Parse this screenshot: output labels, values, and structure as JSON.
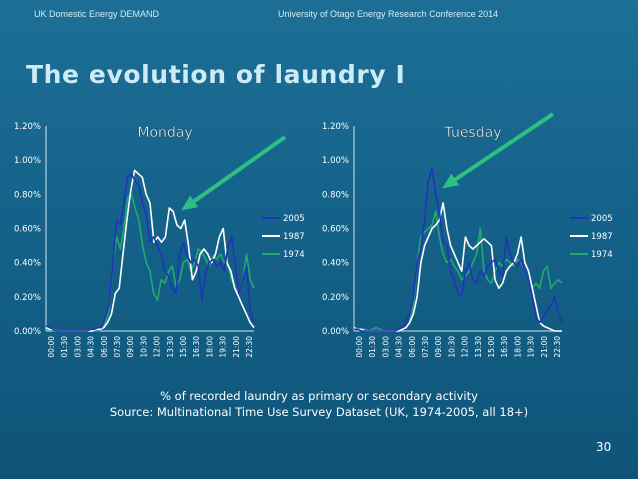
{
  "header": {
    "left": "UK Domestic Energy DEMAND",
    "right": "University of Otago Energy Research Conference 2014"
  },
  "title": "The evolution of laundry I",
  "caption": {
    "line1": "% of recorded laundry as primary or secondary activity",
    "line2": "Source: Multinational Time Use Survey Dataset (UK, 1974-2005, all 18+)"
  },
  "page_number": "30",
  "colors": {
    "2005": "#2233bb",
    "1987": "#ffffff",
    "1974": "#22aa6e",
    "arrow": "#2ebf83",
    "axis_text": "#ffffff"
  },
  "chart_data": [
    {
      "type": "line",
      "title": "Monday",
      "ylim": [
        0,
        1.2
      ],
      "y_ticks": [
        "0.00%",
        "0.20%",
        "0.40%",
        "0.60%",
        "0.80%",
        "1.00%",
        "1.20%"
      ],
      "x_tick_labels": [
        "00:00",
        "01:30",
        "03:00",
        "04:30",
        "06:00",
        "07:30",
        "09:00",
        "10:30",
        "12:00",
        "13:30",
        "15:00",
        "16:30",
        "18:00",
        "19:30",
        "21:00",
        "22:30"
      ],
      "grid": false,
      "legend_position": "right",
      "annotation": "arrow pointing to the 1987 late-morning peak",
      "series": [
        {
          "name": "2005",
          "values": [
            0.03,
            0.02,
            0.01,
            0,
            0,
            0,
            0,
            0,
            0,
            0,
            0,
            0,
            0.01,
            0.01,
            0.02,
            0.02,
            0.08,
            0.15,
            0.4,
            0.65,
            0.62,
            0.75,
            0.9,
            0.92,
            0.88,
            0.85,
            0.75,
            0.68,
            0.52,
            0.55,
            0.5,
            0.45,
            0.35,
            0.32,
            0.25,
            0.22,
            0.45,
            0.52,
            0.44,
            0.4,
            0.42,
            0.38,
            0.18,
            0.35,
            0.4,
            0.42,
            0.38,
            0.4,
            0.35,
            0.5,
            0.55,
            0.38,
            0.22,
            0.3,
            0.38,
            0.12,
            0.05
          ]
        },
        {
          "name": "1987",
          "values": [
            0.02,
            0.01,
            0.01,
            0,
            0,
            0,
            0,
            0,
            0,
            0,
            0,
            0,
            0,
            0.01,
            0.01,
            0.02,
            0.05,
            0.1,
            0.22,
            0.25,
            0.45,
            0.65,
            0.82,
            0.94,
            0.92,
            0.9,
            0.8,
            0.75,
            0.52,
            0.55,
            0.52,
            0.55,
            0.72,
            0.7,
            0.62,
            0.6,
            0.65,
            0.5,
            0.3,
            0.35,
            0.45,
            0.48,
            0.45,
            0.4,
            0.45,
            0.55,
            0.6,
            0.4,
            0.35,
            0.25,
            0.2,
            0.15,
            0.1,
            0.05,
            0.02
          ]
        },
        {
          "name": "1974",
          "values": [
            0.01,
            0.01,
            0,
            0,
            0,
            0,
            0,
            0,
            0,
            0,
            0,
            0,
            0,
            0,
            0,
            0.01,
            0.05,
            0.12,
            0.4,
            0.55,
            0.48,
            0.6,
            0.78,
            0.8,
            0.72,
            0.65,
            0.5,
            0.4,
            0.35,
            0.22,
            0.18,
            0.3,
            0.28,
            0.35,
            0.38,
            0.26,
            0.3,
            0.4,
            0.42,
            0.35,
            0.4,
            0.48,
            0.46,
            0.42,
            0.38,
            0.44,
            0.42,
            0.45,
            0.4,
            0.38,
            0.3,
            0.25,
            0.22,
            0.3,
            0.45,
            0.3,
            0.25
          ]
        }
      ]
    },
    {
      "type": "line",
      "title": "Tuesday",
      "ylim": [
        0,
        1.2
      ],
      "y_ticks": [
        "0.00%",
        "0.20%",
        "0.40%",
        "0.60%",
        "0.80%",
        "1.00%",
        "1.20%"
      ],
      "x_tick_labels": [
        "00:00",
        "01:30",
        "03:00",
        "04:30",
        "06:00",
        "07:30",
        "09:00",
        "10:30",
        "12:00",
        "13:30",
        "15:00",
        "16:30",
        "18:00",
        "19:30",
        "21:00",
        "22:30"
      ],
      "grid": false,
      "legend_position": "right",
      "annotation": "arrow pointing to the 2005 morning peak",
      "series": [
        {
          "name": "2005",
          "values": [
            0.01,
            0.01,
            0,
            0,
            0,
            0,
            0,
            0,
            0,
            0,
            0,
            0,
            0.01,
            0.02,
            0.05,
            0.1,
            0.2,
            0.4,
            0.48,
            0.65,
            0.88,
            0.95,
            0.8,
            0.7,
            0.52,
            0.5,
            0.35,
            0.3,
            0.22,
            0.2,
            0.35,
            0.4,
            0.3,
            0.28,
            0.35,
            0.32,
            0.38,
            0.4,
            0.42,
            0.35,
            0.32,
            0.55,
            0.45,
            0.4,
            0.38,
            0.42,
            0.35,
            0.3,
            0.2,
            0.08,
            0.05,
            0.08,
            0.12,
            0.15,
            0.2,
            0.1,
            0.05
          ]
        },
        {
          "name": "1987",
          "values": [
            0.02,
            0.01,
            0.01,
            0,
            0,
            0,
            0,
            0,
            0,
            0,
            0,
            0,
            0,
            0.01,
            0.02,
            0.05,
            0.1,
            0.2,
            0.4,
            0.5,
            0.55,
            0.6,
            0.62,
            0.65,
            0.75,
            0.6,
            0.5,
            0.45,
            0.4,
            0.35,
            0.55,
            0.5,
            0.48,
            0.5,
            0.52,
            0.54,
            0.52,
            0.5,
            0.3,
            0.25,
            0.28,
            0.35,
            0.38,
            0.4,
            0.45,
            0.55,
            0.4,
            0.35,
            0.25,
            0.15,
            0.05,
            0.03,
            0.02,
            0.01,
            0,
            0,
            0
          ]
        },
        {
          "name": "1974",
          "values": [
            0.02,
            0.01,
            0.01,
            0.01,
            0,
            0.01,
            0.02,
            0.01,
            0,
            0,
            0,
            0,
            0,
            0.01,
            0.02,
            0.05,
            0.15,
            0.4,
            0.55,
            0.58,
            0.6,
            0.62,
            0.7,
            0.55,
            0.45,
            0.4,
            0.42,
            0.38,
            0.35,
            0.3,
            0.32,
            0.35,
            0.4,
            0.45,
            0.6,
            0.35,
            0.3,
            0.28,
            0.35,
            0.4,
            0.38,
            0.42,
            0.4,
            0.38,
            0.42,
            0.4,
            0.35,
            0.3,
            0.25,
            0.28,
            0.25,
            0.35,
            0.38,
            0.25,
            0.28,
            0.3,
            0.28
          ]
        }
      ]
    }
  ]
}
